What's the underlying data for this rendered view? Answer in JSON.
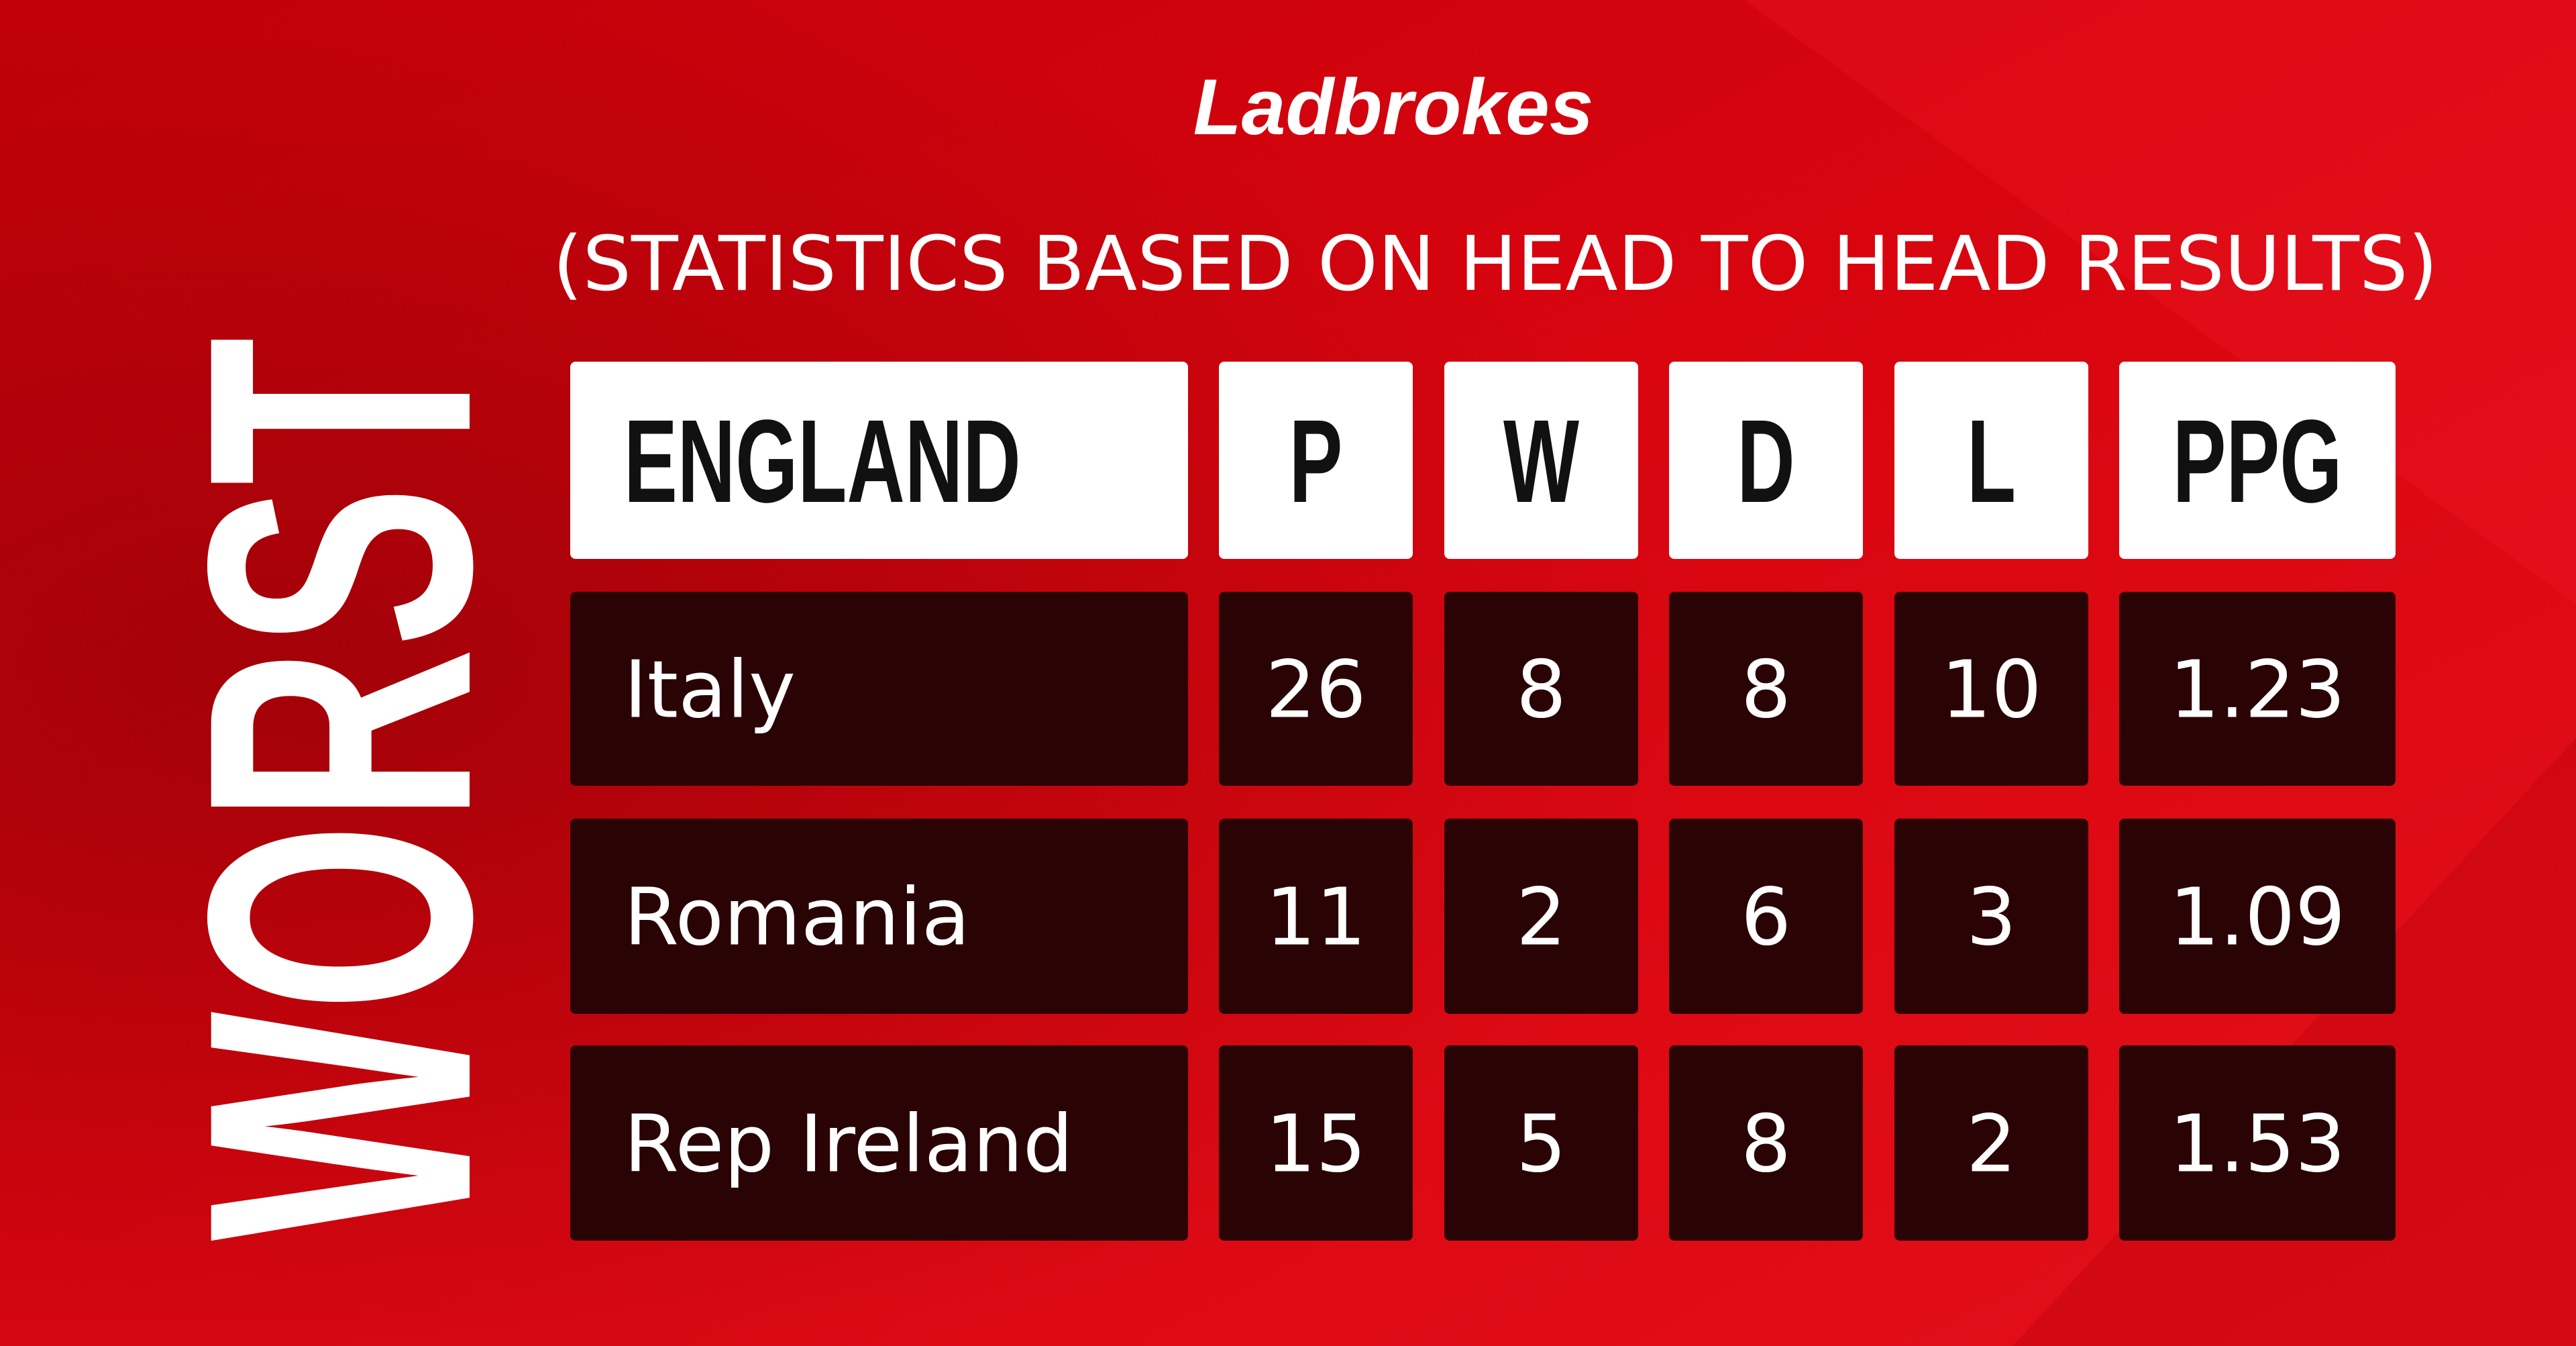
{
  "brand": "Ladbrokes",
  "subtitle": "(STATISTICS BASED ON HEAD TO HEAD RESULTS)",
  "side_title": "WORST",
  "table": {
    "header": [
      "ENGLAND",
      "P",
      "W",
      "D",
      "L",
      "PPG"
    ],
    "rows": [
      [
        "Italy",
        26,
        8,
        8,
        10,
        1.23
      ],
      [
        "Romania",
        11,
        2,
        6,
        3,
        1.09
      ],
      [
        "Rep Ireland",
        15,
        5,
        8,
        2,
        1.53
      ]
    ]
  }
}
